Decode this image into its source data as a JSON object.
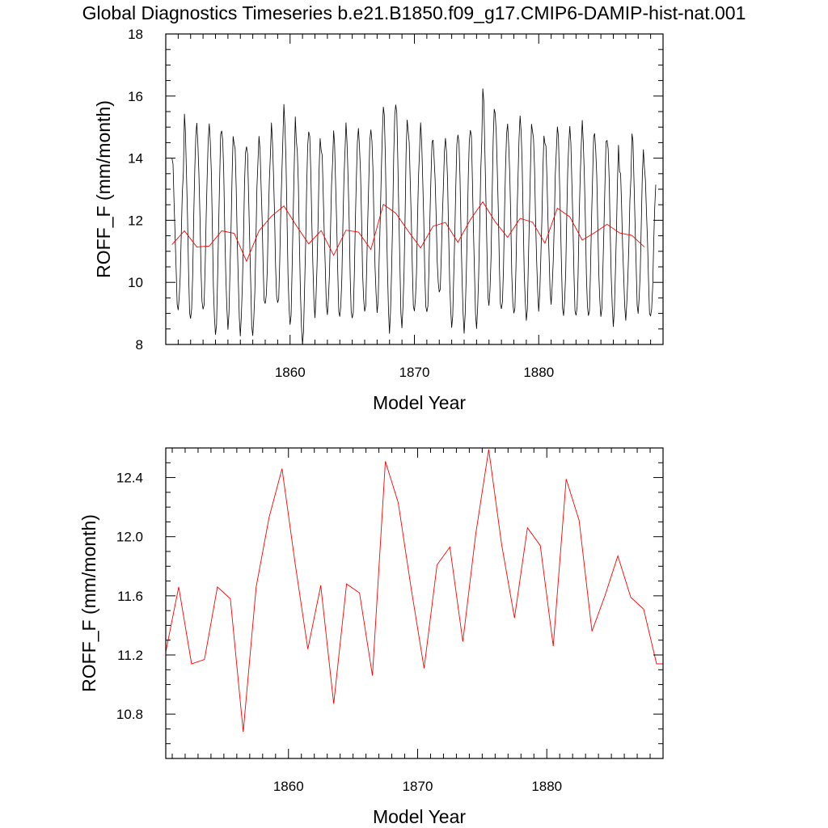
{
  "title": "Global Diagnostics Timeseries b.e21.B1850.f09_g17.CMIP6-DAMIP-hist-nat.001",
  "colors": {
    "monthly": "#000000",
    "annual": "#ff0000",
    "axes": "#000000"
  },
  "chart_data": [
    {
      "type": "line",
      "xlabel": "Model Year",
      "ylabel": "ROFF_F (mm/month)",
      "xlim": [
        1850,
        1890
      ],
      "ylim": [
        8,
        18
      ],
      "x_major_ticks": [
        1860,
        1870,
        1880
      ],
      "y_major_ticks": [
        8,
        10,
        12,
        14,
        16,
        18
      ],
      "y_tick_labels": [
        "8",
        "10",
        "12",
        "14",
        "16",
        "18"
      ],
      "x_tick_labels": [
        "1860",
        "1870",
        "1880"
      ],
      "grid": false,
      "series": [
        {
          "style": "monthly",
          "x_start": 1850.5,
          "x_step": 0.0833333,
          "seasonal_cycle_min": [
            9.1,
            8.7,
            9.0,
            8.3,
            8.6,
            8.4,
            8.3,
            9.2,
            9.2,
            8.6,
            8.0,
            9.0,
            9.0,
            8.8,
            8.7,
            9.0,
            9.1,
            8.5,
            8.6,
            9.0,
            8.9,
            9.6,
            8.6,
            8.5,
            8.6,
            9.2,
            9.0,
            8.9,
            8.8,
            9.2,
            9.4,
            8.9,
            8.8,
            8.8,
            8.9,
            8.7,
            8.9,
            9.0,
            8.8
          ],
          "seasonal_cycle_max": [
            14.0,
            15.3,
            15.0,
            15.1,
            15.0,
            14.6,
            14.4,
            14.6,
            15.0,
            15.7,
            14.7,
            15.0,
            14.3,
            14.8,
            15.0,
            14.9,
            15.0,
            15.8,
            15.8,
            14.8,
            15.0,
            14.5,
            14.7,
            14.9,
            15.0,
            16.2,
            15.3,
            15.0,
            15.4,
            15.0,
            14.6,
            15.0,
            14.9,
            15.1,
            14.8,
            14.7,
            13.7,
            14.8,
            13.6
          ]
        },
        {
          "style": "annual",
          "x": [
            1850.5,
            1851.5,
            1852.5,
            1853.5,
            1854.5,
            1855.5,
            1856.5,
            1857.5,
            1858.5,
            1859.5,
            1860.5,
            1861.5,
            1862.5,
            1863.5,
            1864.5,
            1865.5,
            1866.5,
            1867.5,
            1868.5,
            1869.5,
            1870.5,
            1871.5,
            1872.5,
            1873.5,
            1874.5,
            1875.5,
            1876.5,
            1877.5,
            1878.5,
            1879.5,
            1880.5,
            1881.5,
            1882.5,
            1883.5,
            1884.5,
            1885.5,
            1886.5,
            1887.5,
            1888.5
          ],
          "values": [
            11.22,
            11.66,
            11.14,
            11.17,
            11.66,
            11.58,
            10.68,
            11.66,
            12.13,
            12.46,
            11.83,
            11.24,
            11.67,
            10.87,
            11.68,
            11.62,
            11.06,
            12.51,
            12.23,
            11.65,
            11.11,
            11.81,
            11.93,
            11.29,
            12.02,
            12.59,
            11.95,
            11.45,
            12.06,
            11.94,
            11.26,
            12.39,
            12.11,
            11.36,
            11.6,
            11.87,
            11.59,
            11.51,
            11.14
          ]
        }
      ]
    },
    {
      "type": "line",
      "xlabel": "Model Year",
      "ylabel": "ROFF_F (mm/month)",
      "xlim": [
        1850.5,
        1889
      ],
      "ylim": [
        10.5,
        12.6
      ],
      "x_major_ticks": [
        1860,
        1870,
        1880
      ],
      "x_tick_labels": [
        "1860",
        "1870",
        "1880"
      ],
      "y_major_ticks": [
        10.8,
        11.2,
        11.6,
        12.0,
        12.4
      ],
      "y_tick_labels": [
        "10.8",
        "11.2",
        "11.6",
        "12.0",
        "12.4"
      ],
      "grid": false,
      "series": [
        {
          "style": "annual",
          "x": [
            1850.5,
            1851.5,
            1852.5,
            1853.5,
            1854.5,
            1855.5,
            1856.5,
            1857.5,
            1858.5,
            1859.5,
            1860.5,
            1861.5,
            1862.5,
            1863.5,
            1864.5,
            1865.5,
            1866.5,
            1867.5,
            1868.5,
            1869.5,
            1870.5,
            1871.5,
            1872.5,
            1873.5,
            1874.5,
            1875.5,
            1876.5,
            1877.5,
            1878.5,
            1879.5,
            1880.5,
            1881.5,
            1882.5,
            1883.5,
            1884.5,
            1885.5,
            1886.5,
            1887.5,
            1888.5,
            1889.0
          ],
          "values": [
            11.22,
            11.66,
            11.14,
            11.17,
            11.66,
            11.58,
            10.68,
            11.66,
            12.13,
            12.46,
            11.83,
            11.24,
            11.67,
            10.87,
            11.68,
            11.62,
            11.06,
            12.51,
            12.23,
            11.65,
            11.11,
            11.81,
            11.93,
            11.29,
            12.02,
            12.59,
            11.95,
            11.45,
            12.06,
            11.94,
            11.26,
            12.39,
            12.11,
            11.36,
            11.6,
            11.87,
            11.59,
            11.51,
            11.14,
            11.14
          ]
        }
      ]
    }
  ]
}
